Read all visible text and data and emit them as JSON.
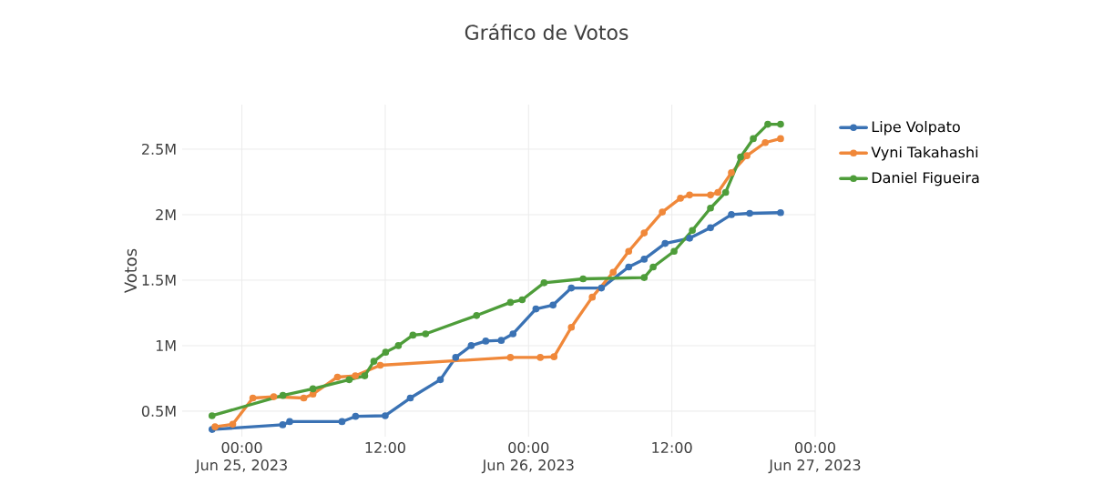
{
  "chart_data": {
    "type": "line",
    "title": "Gráfico de Votos",
    "ylabel": "Votos",
    "xlim": [
      "2023-06-24T19:00",
      "2023-06-27T00:00"
    ],
    "ylim": [
      305000,
      2840000
    ],
    "xticks": [
      {
        "value": "2023-06-25T00:00",
        "label": "00:00\nJun 25, 2023"
      },
      {
        "value": "2023-06-25T12:00",
        "label": "12:00"
      },
      {
        "value": "2023-06-26T00:00",
        "label": "00:00\nJun 26, 2023"
      },
      {
        "value": "2023-06-26T12:00",
        "label": "12:00"
      },
      {
        "value": "2023-06-27T00:00",
        "label": "00:00\nJun 27, 2023"
      }
    ],
    "yticks": [
      {
        "value": 500000,
        "label": "0.5M"
      },
      {
        "value": 1000000,
        "label": "1M"
      },
      {
        "value": 1500000,
        "label": "1.5M"
      },
      {
        "value": 2000000,
        "label": "2M"
      },
      {
        "value": 2500000,
        "label": "2.5M"
      }
    ],
    "grid": true,
    "legend": "top right",
    "marker": "circle",
    "line_style": "solid",
    "series": [
      {
        "name": "Lipe Volpato",
        "color": "#3a72b4",
        "x": [
          "2023-06-24T21:30",
          "2023-06-25T03:25",
          "2023-06-25T04:00",
          "2023-06-25T08:23",
          "2023-06-25T09:31",
          "2023-06-25T12:00",
          "2023-06-25T14:06",
          "2023-06-25T16:37",
          "2023-06-25T17:54",
          "2023-06-25T19:12",
          "2023-06-25T20:25",
          "2023-06-25T21:43",
          "2023-06-25T22:42",
          "2023-06-26T00:37",
          "2023-06-26T02:03",
          "2023-06-26T03:35",
          "2023-06-26T06:06",
          "2023-06-26T08:23",
          "2023-06-26T09:41",
          "2023-06-26T11:26",
          "2023-06-26T13:29",
          "2023-06-26T15:14",
          "2023-06-26T16:59",
          "2023-06-26T18:31",
          "2023-06-26T21:06"
        ],
        "values": [
          360000,
          396000,
          420000,
          420000,
          460000,
          465000,
          600000,
          740000,
          910000,
          1000000,
          1035000,
          1040000,
          1090000,
          1280000,
          1310000,
          1440000,
          1440000,
          1600000,
          1660000,
          1780000,
          1820000,
          1900000,
          2000000,
          2010000,
          2015000
        ]
      },
      {
        "name": "Vyni Takahashi",
        "color": "#f0883a",
        "x": [
          "2023-06-24T21:45",
          "2023-06-24T23:14",
          "2023-06-25T00:55",
          "2023-06-25T02:40",
          "2023-06-25T05:11",
          "2023-06-25T05:57",
          "2023-06-25T08:00",
          "2023-06-25T09:30",
          "2023-06-25T11:35",
          "2023-06-25T22:29",
          "2023-06-26T00:59",
          "2023-06-26T02:08",
          "2023-06-26T03:35",
          "2023-06-26T05:20",
          "2023-06-26T07:05",
          "2023-06-26T08:23",
          "2023-06-26T09:41",
          "2023-06-26T11:12",
          "2023-06-26T12:43",
          "2023-06-26T13:29",
          "2023-06-26T15:14",
          "2023-06-26T15:51",
          "2023-06-26T16:59",
          "2023-06-26T18:17",
          "2023-06-26T19:49",
          "2023-06-26T21:06"
        ],
        "values": [
          380000,
          400000,
          600000,
          610000,
          600000,
          630000,
          760000,
          770000,
          850000,
          910000,
          910000,
          915000,
          1140000,
          1370000,
          1560000,
          1720000,
          1860000,
          2020000,
          2125000,
          2150000,
          2150000,
          2170000,
          2320000,
          2450000,
          2550000,
          2580000
        ]
      },
      {
        "name": "Daniel Figueira",
        "color": "#4e9d3a",
        "x": [
          "2023-06-24T21:30",
          "2023-06-25T03:26",
          "2023-06-25T05:57",
          "2023-06-25T08:59",
          "2023-06-25T10:17",
          "2023-06-25T11:03",
          "2023-06-25T12:02",
          "2023-06-25T13:06",
          "2023-06-25T14:19",
          "2023-06-25T15:23",
          "2023-06-25T19:39",
          "2023-06-25T22:29",
          "2023-06-25T23:28",
          "2023-06-26T01:18",
          "2023-06-26T04:34",
          "2023-06-26T09:41",
          "2023-06-26T10:26",
          "2023-06-26T12:11",
          "2023-06-26T13:43",
          "2023-06-26T15:14",
          "2023-06-26T16:30",
          "2023-06-26T17:45",
          "2023-06-26T18:49",
          "2023-06-26T20:02",
          "2023-06-26T21:06"
        ],
        "values": [
          465000,
          620000,
          670000,
          740000,
          770000,
          880000,
          950000,
          1000000,
          1080000,
          1090000,
          1230000,
          1330000,
          1350000,
          1480000,
          1510000,
          1520000,
          1600000,
          1720000,
          1880000,
          2050000,
          2170000,
          2440000,
          2580000,
          2690000,
          2690000
        ]
      }
    ]
  }
}
